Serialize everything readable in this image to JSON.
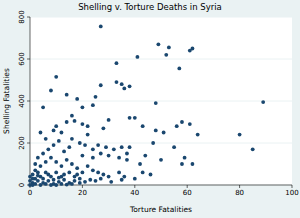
{
  "chart_data": {
    "type": "scatter",
    "title": "Shelling v. Torture Deaths in Syria",
    "x_label": "Torture Fatalities",
    "y_label": "Shelling Fatalities",
    "color": "#1a476f",
    "marker": "circle",
    "grid": true,
    "xlim": [
      0,
      100
    ],
    "xticks": [
      0,
      20,
      40,
      60,
      80,
      100
    ],
    "ylim": [
      0,
      800
    ],
    "yticks": [
      0,
      200,
      400,
      600,
      800
    ],
    "x": [
      27,
      49,
      53,
      61,
      62,
      52,
      41,
      33,
      57,
      35,
      33,
      38,
      36,
      10,
      14,
      27,
      8,
      5,
      48,
      64,
      89,
      80,
      85,
      58,
      61,
      56,
      51,
      48,
      43,
      40,
      38,
      47,
      44,
      50,
      58,
      59,
      62,
      55,
      38,
      37,
      37,
      25,
      24,
      30,
      28,
      22,
      20,
      22,
      17,
      14,
      10,
      12,
      16,
      19,
      21,
      24,
      26,
      29,
      32,
      34,
      30,
      27,
      24,
      20,
      15,
      13,
      11,
      9,
      7,
      5,
      3,
      2,
      4,
      6,
      8,
      10,
      12,
      14,
      16,
      18,
      20,
      22,
      24,
      26,
      28,
      30,
      34,
      36,
      40,
      43,
      18,
      15,
      12,
      10,
      8,
      6,
      4,
      2,
      1,
      3,
      5,
      7,
      9,
      11,
      13,
      15,
      17,
      19,
      21,
      23,
      1,
      2,
      3,
      0,
      1,
      2,
      4,
      6,
      8,
      10,
      12,
      14,
      16,
      0,
      0,
      1,
      3,
      5,
      7,
      9,
      11,
      13,
      17,
      19,
      25,
      27,
      31,
      35,
      20,
      18,
      16,
      6,
      4,
      9,
      46,
      42,
      35
    ],
    "values": [
      755,
      670,
      655,
      640,
      650,
      620,
      610,
      580,
      555,
      480,
      490,
      470,
      460,
      515,
      430,
      475,
      450,
      370,
      390,
      240,
      395,
      240,
      170,
      300,
      290,
      280,
      250,
      260,
      280,
      320,
      320,
      200,
      140,
      120,
      100,
      130,
      100,
      180,
      180,
      150,
      120,
      420,
      380,
      310,
      270,
      280,
      290,
      240,
      305,
      300,
      280,
      250,
      220,
      200,
      190,
      170,
      190,
      180,
      170,
      130,
      140,
      150,
      130,
      140,
      180,
      160,
      210,
      190,
      170,
      150,
      130,
      100,
      90,
      110,
      130,
      110,
      90,
      120,
      100,
      80,
      60,
      90,
      70,
      60,
      50,
      40,
      60,
      40,
      30,
      60,
      50,
      60,
      40,
      60,
      40,
      60,
      40,
      30,
      10,
      20,
      10,
      20,
      5,
      15,
      25,
      10,
      20,
      30,
      15,
      25,
      50,
      70,
      60,
      0,
      0,
      5,
      0,
      5,
      0,
      0,
      5,
      2,
      5,
      20,
      40,
      30,
      45,
      30,
      50,
      25,
      35,
      50,
      40,
      10,
      20,
      30,
      15,
      25,
      370,
      410,
      330,
      220,
      250,
      260,
      50,
      100,
      180
    ]
  }
}
